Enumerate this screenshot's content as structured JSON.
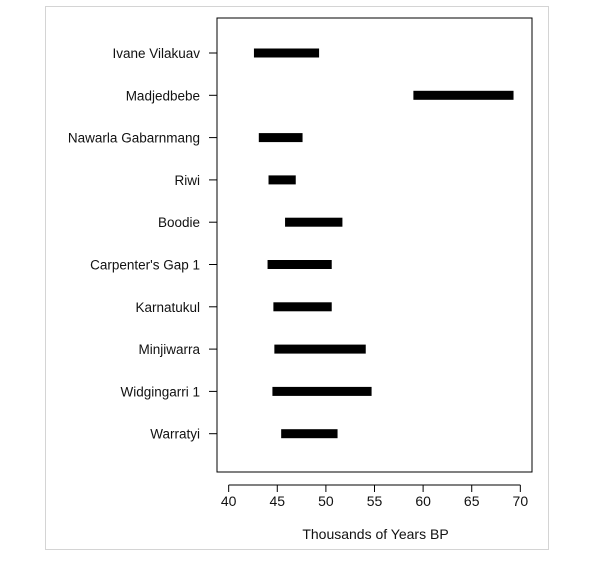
{
  "chart_data": {
    "type": "bar",
    "orientation": "horizontal-range",
    "title": "",
    "xlabel": "Thousands of Years BP",
    "ylabel": "",
    "xlim": [
      38.8,
      71.2
    ],
    "xticks": [
      40,
      45,
      50,
      55,
      60,
      65,
      70
    ],
    "xtick_labels": [
      "40",
      "45",
      "50",
      "55",
      "60",
      "65",
      "70"
    ],
    "grid": false,
    "legend": "none",
    "bar_color": "#000000",
    "ranges": [
      {
        "site": "Ivane Vilakuav",
        "start": 42.6,
        "end": 49.3
      },
      {
        "site": "Madjedbebe",
        "start": 59.0,
        "end": 69.3
      },
      {
        "site": "Nawarla Gabarnmang",
        "start": 43.1,
        "end": 47.6
      },
      {
        "site": "Riwi",
        "start": 44.1,
        "end": 46.9
      },
      {
        "site": "Boodie",
        "start": 45.8,
        "end": 51.7
      },
      {
        "site": "Carpenter's Gap 1",
        "start": 44.0,
        "end": 50.6
      },
      {
        "site": "Karnatukul",
        "start": 44.6,
        "end": 50.6
      },
      {
        "site": "Minjiwarra",
        "start": 44.7,
        "end": 54.1
      },
      {
        "site": "Widgingarri 1",
        "start": 44.5,
        "end": 54.7
      },
      {
        "site": "Warratyi",
        "start": 45.4,
        "end": 51.2
      }
    ]
  }
}
